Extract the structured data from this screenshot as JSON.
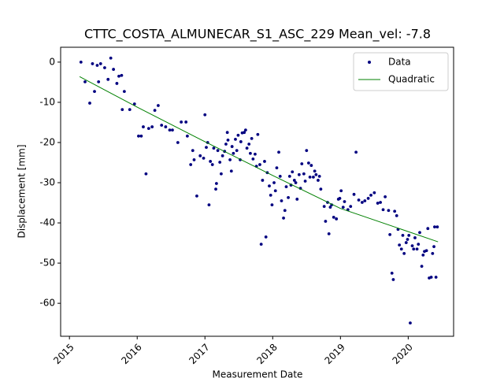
{
  "chart_data": {
    "type": "scatter",
    "title": "CTTC_COSTA_ALMUNECAR_S1_ASC_229    Mean_vel: -7.8",
    "xlabel": "Measurement Date",
    "ylabel": "Displacement [mm]",
    "xlim": [
      2014.87,
      2020.67
    ],
    "ylim": [
      -68.2,
      3.7
    ],
    "xticks": [
      2015,
      2016,
      2017,
      2018,
      2019,
      2020
    ],
    "yticks": [
      0,
      -10,
      -20,
      -30,
      -40,
      -50,
      -60
    ],
    "legend": "upper right",
    "series": [
      {
        "name": "Data",
        "type": "scatter",
        "color": "#000080",
        "x": [
          2015.17,
          2015.23,
          2015.3,
          2015.34,
          2015.37,
          2015.41,
          2015.43,
          2015.46,
          2015.52,
          2015.57,
          2015.61,
          2015.65,
          2015.7,
          2015.73,
          2015.77,
          2015.81,
          2015.78,
          2015.89,
          2015.96,
          2016.02,
          2016.06,
          2016.09,
          2016.13,
          2016.17,
          2016.22,
          2016.26,
          2016.31,
          2016.36,
          2016.42,
          2016.48,
          2016.52,
          2016.6,
          2016.65,
          2016.72,
          2016.74,
          2016.79,
          2016.82,
          2016.84,
          2016.88,
          2016.93,
          2016.98,
          2017.0,
          2017.02,
          2017.04,
          2017.06,
          2017.08,
          2017.11,
          2017.13,
          2017.16,
          2017.17,
          2017.19,
          2017.22,
          2017.24,
          2017.26,
          2017.29,
          2017.31,
          2017.33,
          2017.34,
          2017.37,
          2017.39,
          2017.4,
          2017.42,
          2017.45,
          2017.47,
          2017.49,
          2017.52,
          2017.53,
          2017.55,
          2017.58,
          2017.6,
          2017.62,
          2017.65,
          2017.67,
          2017.69,
          2017.71,
          2017.74,
          2017.76,
          2017.78,
          2017.81,
          2017.83,
          2017.85,
          2017.88,
          2017.9,
          2017.92,
          2017.95,
          2017.97,
          2017.99,
          2018.02,
          2018.04,
          2018.06,
          2018.09,
          2018.11,
          2018.13,
          2018.16,
          2018.18,
          2018.2,
          2018.23,
          2018.25,
          2018.27,
          2018.29,
          2018.32,
          2018.34,
          2018.36,
          2018.39,
          2018.41,
          2018.43,
          2018.46,
          2018.48,
          2018.5,
          2018.53,
          2018.55,
          2018.57,
          2018.6,
          2018.62,
          2018.64,
          2018.67,
          2018.69,
          2018.71,
          2018.76,
          2018.78,
          2018.81,
          2018.83,
          2018.85,
          2018.87,
          2018.9,
          2018.94,
          2018.97,
          2018.99,
          2019.01,
          2019.04,
          2019.06,
          2019.11,
          2019.15,
          2019.2,
          2019.23,
          2019.27,
          2019.32,
          2019.36,
          2019.41,
          2019.45,
          2019.5,
          2019.55,
          2019.59,
          2019.63,
          2019.66,
          2019.71,
          2019.73,
          2019.76,
          2019.78,
          2019.8,
          2019.83,
          2019.85,
          2019.87,
          2019.9,
          2019.92,
          2019.94,
          2019.97,
          2019.99,
          2020.01,
          2020.03,
          2020.06,
          2020.08,
          2020.1,
          2020.13,
          2020.15,
          2020.17,
          2020.2,
          2020.22,
          2020.24,
          2020.27,
          2020.29,
          2020.31,
          2020.34,
          2020.36,
          2020.38,
          2020.41,
          2020.39,
          2020.43
        ],
        "values": [
          0,
          -4.9,
          -10.2,
          -0.4,
          -7.3,
          -0.8,
          -4.9,
          -0.4,
          -1.4,
          -4.3,
          1.0,
          -1.8,
          -5.3,
          -3.5,
          -3.3,
          -7.3,
          -11.8,
          -11.8,
          -10.4,
          -18.4,
          -18.4,
          -16.1,
          -27.8,
          -16.5,
          -16.1,
          -12.0,
          -10.8,
          -15.7,
          -16.1,
          -16.9,
          -16.9,
          -20.0,
          -14.9,
          -14.9,
          -18.4,
          -25.5,
          -22.0,
          -24.3,
          -33.3,
          -23.3,
          -23.9,
          -13.1,
          -21.2,
          -20.0,
          -35.5,
          -24.7,
          -25.5,
          -21.4,
          -31.6,
          -30.2,
          -22.0,
          -24.9,
          -27.8,
          -23.3,
          -22.2,
          -20.4,
          -17.5,
          -19.4,
          -24.3,
          -27.1,
          -21.0,
          -22.7,
          -19.2,
          -22.0,
          -18.2,
          -24.3,
          -19.8,
          -17.6,
          -17.5,
          -16.9,
          -21.4,
          -20.4,
          -22.7,
          -19.0,
          -24.1,
          -22.9,
          -25.9,
          -18.0,
          -25.5,
          -45.3,
          -29.4,
          -24.7,
          -43.5,
          -27.5,
          -30.8,
          -33.1,
          -35.5,
          -30.0,
          -32.0,
          -26.3,
          -22.4,
          -28.4,
          -34.5,
          -38.8,
          -36.9,
          -31.0,
          -33.7,
          -28.4,
          -30.6,
          -27.3,
          -29.4,
          -30.0,
          -34.1,
          -28.0,
          -31.4,
          -25.3,
          -27.8,
          -29.6,
          -22.0,
          -25.1,
          -28.6,
          -25.7,
          -28.6,
          -27.1,
          -28.0,
          -29.4,
          -28.4,
          -31.6,
          -35.9,
          -39.6,
          -34.9,
          -42.7,
          -36.1,
          -35.5,
          -38.6,
          -39.0,
          -34.1,
          -33.9,
          -32.0,
          -36.1,
          -34.7,
          -36.7,
          -35.9,
          -32.9,
          -22.4,
          -34.3,
          -34.9,
          -34.5,
          -33.9,
          -33.1,
          -32.5,
          -35.1,
          -34.9,
          -36.7,
          -33.5,
          -36.9,
          -42.9,
          -52.5,
          -54.1,
          -37.1,
          -38.2,
          -41.6,
          -45.5,
          -46.5,
          -43.1,
          -47.6,
          -44.9,
          -44.1,
          -43.1,
          -64.9,
          -45.7,
          -46.5,
          -43.7,
          -46.5,
          -45.3,
          -42.4,
          -50.8,
          -48.0,
          -47.1,
          -46.9,
          -41.4,
          -53.7,
          -53.5,
          -47.6,
          -45.9,
          -53.5,
          -41.0,
          -41.0
        ]
      },
      {
        "name": "Quadratic",
        "type": "line",
        "color": "#008000",
        "x": [
          2015.15,
          2016,
          2017,
          2018,
          2019,
          2020.44
        ],
        "values": [
          -3.6,
          -11.2,
          -19.8,
          -28.2,
          -36.4,
          -44.7
        ]
      }
    ]
  }
}
